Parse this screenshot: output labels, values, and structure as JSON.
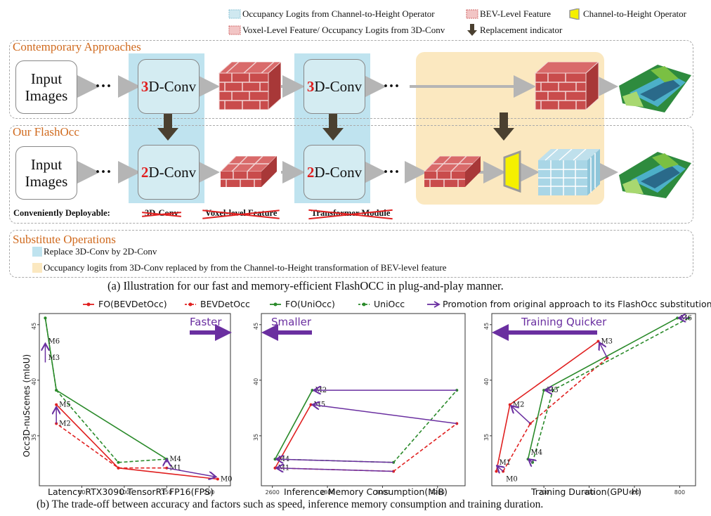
{
  "legend": {
    "c2h_logits": "Occupancy Logits from Channel-to-Height Operator",
    "bev_feature": "BEV-Level Feature",
    "c2h_operator": "Channel-to-Height Operator",
    "voxel_feature": "Voxel-Level Feature/ Occupancy Logits from 3D-Conv",
    "replacement": "Replacement indicator"
  },
  "contemporary": {
    "title": "Contemporary Approaches",
    "input_label": "Input\nImages",
    "conv1_digit": "3",
    "conv1_rest": "D-Conv",
    "conv2_digit": "3",
    "conv2_rest": "D-Conv",
    "dots": "..."
  },
  "flashocc": {
    "title": "Our FlashOcc",
    "input_label": "Input\nImages",
    "conv1_digit": "2",
    "conv1_rest": "D-Conv",
    "conv2_digit": "2",
    "conv2_rest": "D-Conv",
    "dots": "...",
    "deployable": "Conveniently Deployable:",
    "strike1": "3D-Conv",
    "strike2": "Voxel-level Feature",
    "strike3": "Transformer Module"
  },
  "substitute": {
    "title": "Substitute Operations",
    "item1": "Replace 3D-Conv by 2D-Conv",
    "item2": "Occupancy logits from 3D-Conv replaced by from the Channel-to-Height transformation of BEV-level feature"
  },
  "caption_a": "(a) Illustration for our fast and memory-efficient FlashOCC in plug-and-play manner.",
  "caption_b": "(b) The trade-off between accuracy and factors such as speed, inference memory consumption and training duration.",
  "plot_legend": {
    "fo_bevdetocc": "FO(BEVDetOcc)",
    "bevdetocc": "BEVDetOcc",
    "fo_uniocc": "FO(UniOcc)",
    "uniocc": "UniOcc",
    "promotion": "Promotion from original approach to its FlashOcc substitution"
  },
  "colors": {
    "red": "#e02020",
    "green": "#2a8a2a",
    "purple": "#6a2fa0",
    "orange_title": "#d06a1e",
    "blue_shade": "#bfe3ef",
    "yellow_shade": "#fbe8c0"
  },
  "chart_data": [
    {
      "type": "line",
      "ylabel": "Occ3D-nuScenes (mIoU)",
      "xlabel": "Latency RTX3090 TensorRT FP16(FPS)",
      "direction_label": "Faster",
      "xticks": [
        "50",
        "100",
        "150",
        "200"
      ],
      "yticks": [
        "35",
        "40",
        "45"
      ],
      "xlim": [
        0,
        225
      ],
      "ylim": [
        30.5,
        46
      ],
      "series": [
        {
          "name": "FO(BEVDetOcc)",
          "x": [
            210,
            93,
            20
          ],
          "y": [
            31.1,
            32.1,
            37.8
          ]
        },
        {
          "name": "BEVDetOcc",
          "x": [
            150,
            93,
            20
          ],
          "y": [
            32.1,
            32.1,
            36.1
          ]
        },
        {
          "name": "FO(UniOcc)",
          "x": [
            150,
            20,
            7
          ],
          "y": [
            32.9,
            39.1,
            45.6
          ]
        },
        {
          "name": "UniOcc",
          "x": [
            150,
            93,
            20,
            7
          ],
          "y": [
            32.9,
            32.6,
            39.1,
            45.6
          ]
        }
      ],
      "labels": [
        {
          "text": "M0",
          "x": 210,
          "y": 31.1
        },
        {
          "text": "M1",
          "x": 150,
          "y": 32.1
        },
        {
          "text": "M4",
          "x": 150,
          "y": 32.9
        },
        {
          "text": "M2",
          "x": 20,
          "y": 36.1
        },
        {
          "text": "M5",
          "x": 20,
          "y": 37.8
        },
        {
          "text": "M3",
          "x": 7,
          "y": 42.0
        },
        {
          "text": "M6",
          "x": 7,
          "y": 43.5
        }
      ]
    },
    {
      "type": "line",
      "xlabel": "Inference Memory Consumption(MiB)",
      "direction_label": "Smaller",
      "xticks": [
        "2600",
        "2800",
        "3000",
        "3200"
      ],
      "yticks": [
        "35",
        "40",
        "45"
      ],
      "xlim": [
        2560,
        3300
      ],
      "ylim": [
        30.5,
        46
      ],
      "series": [
        {
          "name": "FO(BEVDetOcc)",
          "x": [
            2610,
            2740
          ],
          "y": [
            32.1,
            37.8
          ]
        },
        {
          "name": "BEVDetOcc",
          "x": [
            2610,
            3040,
            3270
          ],
          "y": [
            32.1,
            31.8,
            36.1
          ]
        },
        {
          "name": "FO(UniOcc)",
          "x": [
            2610,
            2745
          ],
          "y": [
            32.9,
            39.1
          ]
        },
        {
          "name": "UniOcc",
          "x": [
            2610,
            3040,
            3270
          ],
          "y": [
            32.9,
            32.6,
            39.1
          ]
        }
      ],
      "labels": [
        {
          "text": "M4",
          "x": 2610,
          "y": 32.9
        },
        {
          "text": "M1",
          "x": 2610,
          "y": 32.1
        },
        {
          "text": "M2",
          "x": 2745,
          "y": 39.1
        },
        {
          "text": "M5",
          "x": 2740,
          "y": 37.8
        }
      ]
    },
    {
      "type": "line",
      "xlabel": "Training Duration(GPU·H)",
      "direction_label": "Training Quicker",
      "xticks": [
        "200",
        "400",
        "600",
        "800"
      ],
      "yticks": [
        "35",
        "40",
        "45"
      ],
      "xlim": [
        -30,
        870
      ],
      "ylim": [
        30.5,
        46
      ],
      "series": [
        {
          "name": "FO(BEVDetOcc)",
          "x": [
            -10,
            50,
            440
          ],
          "y": [
            31.8,
            37.8,
            43.5
          ]
        },
        {
          "name": "BEVDetOcc",
          "x": [
            20,
            140,
            480
          ],
          "y": [
            31.8,
            36.1,
            42.0
          ]
        },
        {
          "name": "FO(UniOcc)",
          "x": [
            130,
            200,
            790
          ],
          "y": [
            32.9,
            39.1,
            45.6
          ]
        },
        {
          "name": "UniOcc",
          "x": [
            150,
            240,
            840
          ],
          "y": [
            32.6,
            39.1,
            45.6
          ]
        }
      ],
      "labels": [
        {
          "text": "M0",
          "x": 20,
          "y": 31.1
        },
        {
          "text": "M1",
          "x": -10,
          "y": 32.6
        },
        {
          "text": "M4",
          "x": 130,
          "y": 33.5
        },
        {
          "text": "M2",
          "x": 50,
          "y": 37.8
        },
        {
          "text": "M5",
          "x": 200,
          "y": 39.1
        },
        {
          "text": "M3",
          "x": 440,
          "y": 43.5
        },
        {
          "text": "M6",
          "x": 790,
          "y": 45.6
        }
      ]
    }
  ]
}
